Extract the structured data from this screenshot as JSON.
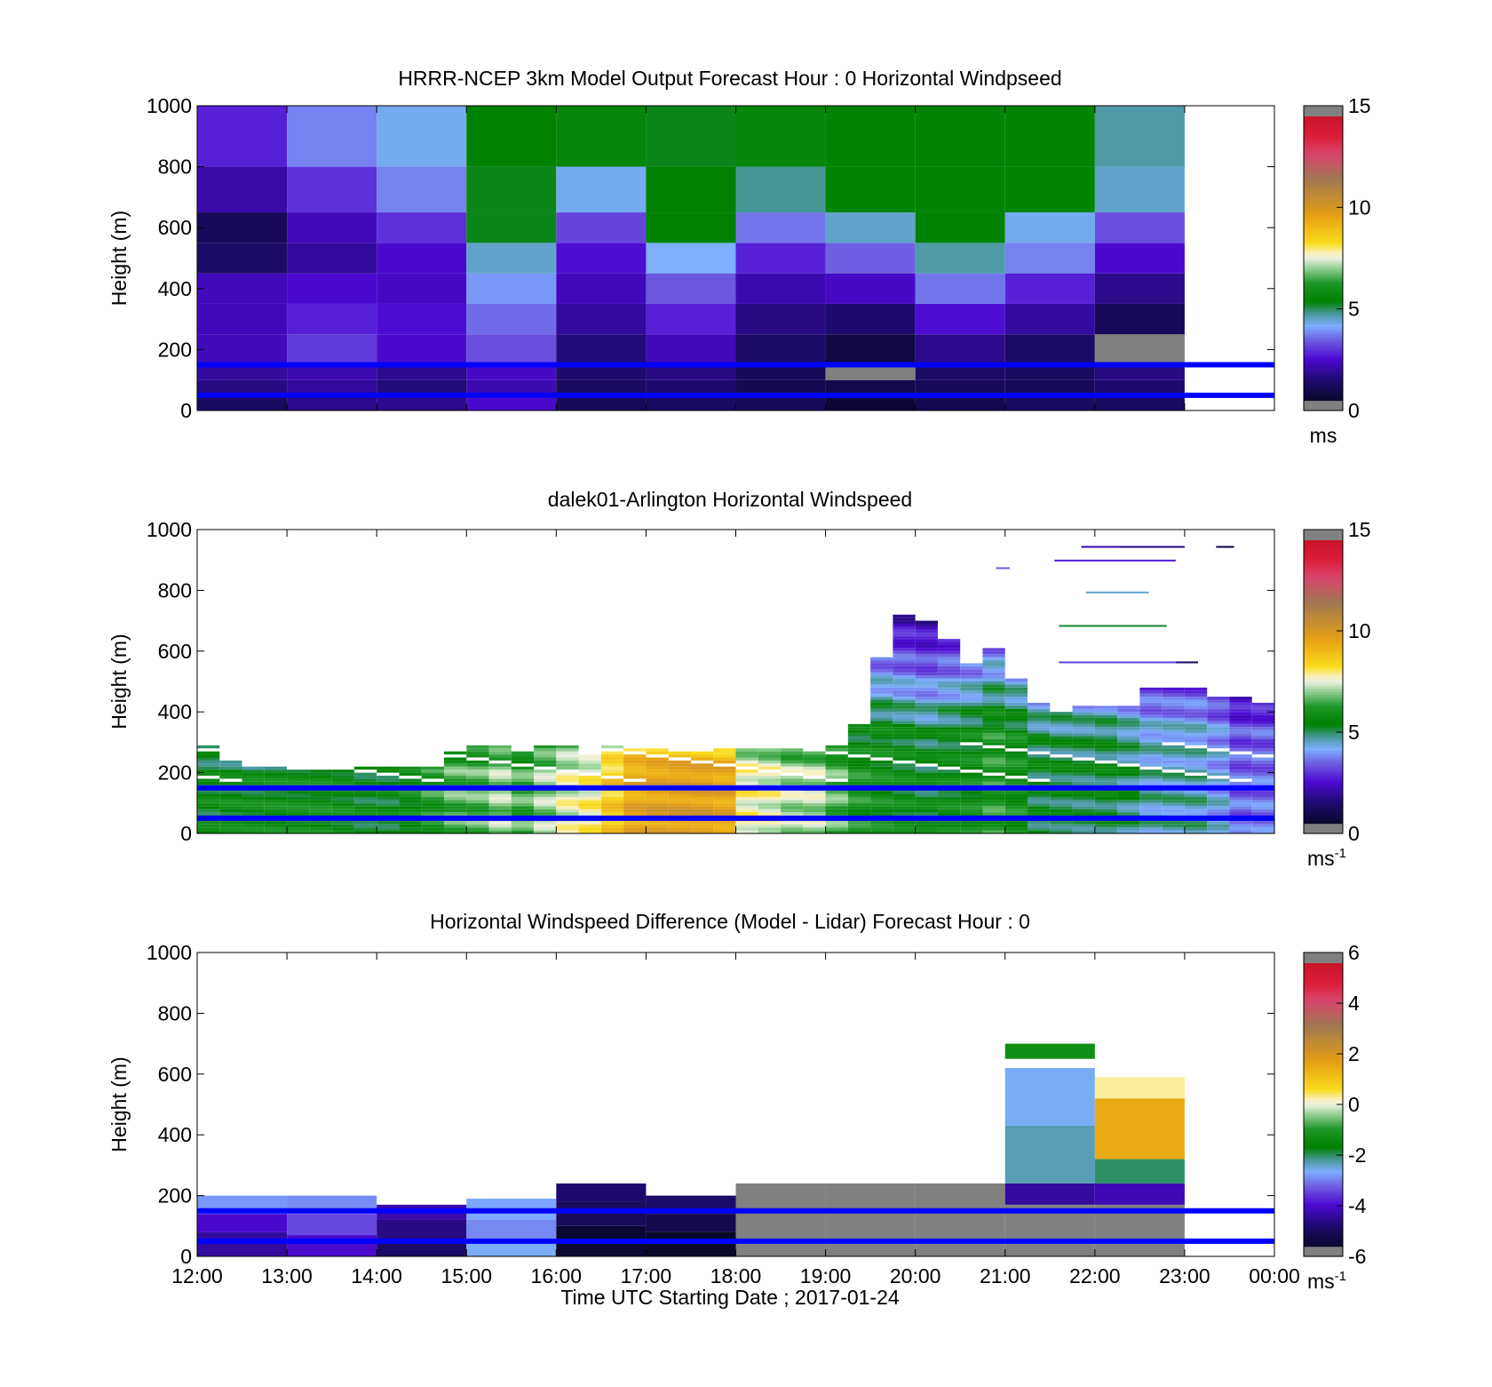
{
  "figure": {
    "xticks": [
      "12:00",
      "13:00",
      "14:00",
      "15:00",
      "16:00",
      "17:00",
      "18:00",
      "19:00",
      "20:00",
      "21:00",
      "22:00",
      "23:00",
      "00:00"
    ],
    "xlabel": "Time UTC  Starting Date ; 2017-01-24",
    "yticks": [
      "0",
      "200",
      "400",
      "600",
      "800",
      "1000"
    ],
    "ylabel": "Height (m)"
  },
  "chart_data": [
    {
      "type": "heatmap",
      "title": "HRRR-NCEP 3km Model Output   Forecast Hour : 0 Horizontal Windpseed",
      "xlabel": "",
      "ylabel": "Height (m)",
      "ylim": [
        0,
        1000
      ],
      "xlim": [
        "12:00",
        "00:00"
      ],
      "colorbar": {
        "ticks": [
          "0",
          "5",
          "10",
          "15"
        ],
        "range": [
          0,
          15
        ],
        "unit": "ms",
        "unit_sup": ""
      },
      "reference_lines_m": [
        150,
        50
      ],
      "cell_width_hours": 1,
      "columns": [
        {
          "start": 0,
          "values": [
            [
              0,
              50,
              1.3
            ],
            [
              50,
              100,
              1.7
            ],
            [
              100,
              150,
              2.0
            ],
            [
              150,
              250,
              2.3
            ],
            [
              250,
              350,
              2.3
            ],
            [
              350,
              450,
              2.3
            ],
            [
              450,
              550,
              1.4
            ],
            [
              550,
              650,
              1.2
            ],
            [
              650,
              800,
              2.1
            ],
            [
              800,
              1000,
              2.8
            ]
          ]
        },
        {
          "start": 1,
          "values": [
            [
              0,
              50,
              1.8
            ],
            [
              50,
              100,
              2.0
            ],
            [
              100,
              150,
              2.2
            ],
            [
              150,
              250,
              3.1
            ],
            [
              250,
              350,
              2.8
            ],
            [
              350,
              450,
              2.5
            ],
            [
              450,
              550,
              2.0
            ],
            [
              550,
              650,
              2.3
            ],
            [
              650,
              800,
              3.0
            ],
            [
              800,
              1000,
              3.8
            ]
          ]
        },
        {
          "start": 2,
          "values": [
            [
              0,
              50,
              1.8
            ],
            [
              50,
              100,
              1.6
            ],
            [
              100,
              150,
              1.8
            ],
            [
              150,
              250,
              2.5
            ],
            [
              250,
              350,
              2.6
            ],
            [
              350,
              450,
              2.4
            ],
            [
              450,
              550,
              2.5
            ],
            [
              550,
              650,
              3.0
            ],
            [
              650,
              800,
              3.8
            ],
            [
              800,
              1000,
              4.3
            ]
          ]
        },
        {
          "start": 3,
          "values": [
            [
              0,
              50,
              2.5
            ],
            [
              50,
              100,
              2.2
            ],
            [
              100,
              150,
              2.4
            ],
            [
              150,
              250,
              3.3
            ],
            [
              250,
              350,
              3.6
            ],
            [
              350,
              450,
              4.0
            ],
            [
              450,
              550,
              4.5
            ],
            [
              550,
              650,
              5.3
            ],
            [
              650,
              800,
              5.3
            ],
            [
              800,
              1000,
              5.4
            ]
          ]
        },
        {
          "start": 4,
          "values": [
            [
              0,
              50,
              1.2
            ],
            [
              50,
              100,
              1.3
            ],
            [
              100,
              150,
              1.5
            ],
            [
              150,
              250,
              1.6
            ],
            [
              250,
              350,
              2.0
            ],
            [
              350,
              450,
              2.3
            ],
            [
              450,
              550,
              2.6
            ],
            [
              550,
              650,
              3.2
            ],
            [
              650,
              800,
              4.3
            ],
            [
              800,
              1000,
              5.6
            ]
          ]
        },
        {
          "start": 5,
          "values": [
            [
              0,
              50,
              1.3
            ],
            [
              50,
              100,
              1.5
            ],
            [
              100,
              150,
              1.7
            ],
            [
              150,
              250,
              2.3
            ],
            [
              250,
              350,
              2.8
            ],
            [
              350,
              450,
              3.4
            ],
            [
              450,
              550,
              4.2
            ],
            [
              550,
              650,
              5.4
            ],
            [
              650,
              800,
              5.4
            ],
            [
              800,
              1000,
              5.3
            ]
          ]
        },
        {
          "start": 6,
          "values": [
            [
              0,
              50,
              1.2
            ],
            [
              50,
              100,
              1.1
            ],
            [
              100,
              150,
              1.2
            ],
            [
              150,
              250,
              1.4
            ],
            [
              250,
              350,
              1.7
            ],
            [
              350,
              450,
              2.2
            ],
            [
              450,
              550,
              2.8
            ],
            [
              550,
              650,
              3.7
            ],
            [
              650,
              800,
              4.8
            ],
            [
              800,
              1000,
              5.6
            ]
          ]
        },
        {
          "start": 7,
          "values": [
            [
              0,
              50,
              0.7
            ],
            [
              50,
              100,
              1.0
            ],
            [
              100,
              150,
              0.0
            ],
            [
              150,
              250,
              0.9
            ],
            [
              250,
              350,
              1.5
            ],
            [
              350,
              450,
              2.4
            ],
            [
              450,
              550,
              3.5
            ],
            [
              550,
              650,
              4.5
            ],
            [
              650,
              800,
              5.5
            ],
            [
              800,
              1000,
              5.5
            ]
          ]
        },
        {
          "start": 8,
          "values": [
            [
              0,
              50,
              1.1
            ],
            [
              50,
              100,
              1.2
            ],
            [
              100,
              150,
              1.4
            ],
            [
              150,
              250,
              1.8
            ],
            [
              250,
              350,
              2.6
            ],
            [
              350,
              450,
              3.7
            ],
            [
              450,
              550,
              4.7
            ],
            [
              550,
              650,
              5.4
            ],
            [
              650,
              800,
              5.5
            ],
            [
              800,
              1000,
              5.5
            ]
          ]
        },
        {
          "start": 9,
          "values": [
            [
              0,
              50,
              1.3
            ],
            [
              50,
              100,
              1.2
            ],
            [
              100,
              150,
              1.3
            ],
            [
              150,
              250,
              1.4
            ],
            [
              250,
              350,
              2.0
            ],
            [
              350,
              450,
              2.8
            ],
            [
              450,
              550,
              3.8
            ],
            [
              550,
              650,
              4.3
            ],
            [
              650,
              800,
              5.5
            ],
            [
              800,
              1000,
              5.5
            ]
          ]
        },
        {
          "start": 10,
          "values": [
            [
              0,
              50,
              1.3
            ],
            [
              50,
              100,
              1.5
            ],
            [
              100,
              150,
              1.7
            ],
            [
              150,
              250,
              0.0
            ],
            [
              250,
              350,
              1.2
            ],
            [
              350,
              450,
              1.8
            ],
            [
              450,
              550,
              2.5
            ],
            [
              550,
              650,
              3.3
            ],
            [
              650,
              800,
              4.5
            ],
            [
              800,
              1000,
              4.7
            ]
          ]
        }
      ]
    },
    {
      "type": "heatmap",
      "title": "dalek01-Arlington  Horizontal Windspeed",
      "xlabel": "",
      "ylabel": "Height (m)",
      "ylim": [
        0,
        1000
      ],
      "xlim": [
        "12:00",
        "00:00"
      ],
      "colorbar": {
        "ticks": [
          "0",
          "5",
          "10",
          "15"
        ],
        "range": [
          0,
          15
        ],
        "unit": "ms",
        "unit_sup": "-1"
      },
      "reference_lines_m": [
        150,
        50
      ],
      "cell_width_hours": 0.25,
      "profile_speeds": [
        5.5,
        5.6,
        5.6,
        5.7,
        5.7,
        5.8,
        5.7,
        5.5,
        5.5,
        5.8,
        6.2,
        6.6,
        6.6,
        7.0,
        6.5,
        7.0,
        7.5,
        7.8,
        8.6,
        9.5,
        9.7,
        9.8,
        9.8,
        9.6,
        7.8,
        7.6,
        7.2,
        7.2,
        6.6,
        6.0,
        5.8,
        5.6,
        5.4,
        5.6,
        5.8,
        6.2,
        5.9,
        5.3,
        5.3,
        5.2,
        5.3,
        5.0,
        4.6,
        4.6,
        4.6,
        4.2,
        3.5,
        3.6
      ],
      "profile_tops_m": [
        290,
        240,
        220,
        220,
        210,
        210,
        220,
        220,
        220,
        220,
        220,
        270,
        290,
        290,
        270,
        290,
        290,
        260,
        290,
        280,
        280,
        270,
        270,
        280,
        280,
        280,
        280,
        280,
        290,
        360,
        580,
        720,
        700,
        640,
        560,
        610,
        510,
        430,
        400,
        420,
        420,
        420,
        480,
        480,
        480,
        450,
        450,
        430
      ],
      "sparse_segments": [
        {
          "start_h": 9.85,
          "end_h": 10.25,
          "height_m": 940,
          "speed": 2.2
        },
        {
          "start_h": 10.25,
          "end_h": 11.0,
          "height_m": 940,
          "speed": 1.8
        },
        {
          "start_h": 11.35,
          "end_h": 11.55,
          "height_m": 940,
          "speed": 0.8
        },
        {
          "start_h": 9.55,
          "end_h": 10.9,
          "height_m": 895,
          "speed": 2.8
        },
        {
          "start_h": 8.9,
          "end_h": 9.05,
          "height_m": 870,
          "speed": 3.5
        },
        {
          "start_h": 9.9,
          "end_h": 10.6,
          "height_m": 790,
          "speed": 4.5
        },
        {
          "start_h": 9.6,
          "end_h": 10.8,
          "height_m": 680,
          "speed": 5.2
        },
        {
          "start_h": 9.6,
          "end_h": 10.9,
          "height_m": 560,
          "speed": 3.2
        },
        {
          "start_h": 10.9,
          "end_h": 11.15,
          "height_m": 560,
          "speed": 1.4
        }
      ]
    },
    {
      "type": "heatmap",
      "title": "Horizontal Windspeed Difference (Model - Lidar) Forecast Hour : 0",
      "xlabel": "Time UTC  Starting Date ; 2017-01-24",
      "ylabel": "Height (m)",
      "ylim": [
        0,
        1000
      ],
      "xlim": [
        "12:00",
        "00:00"
      ],
      "colorbar": {
        "ticks": [
          "-6",
          "-4",
          "-2",
          "0",
          "2",
          "4",
          "6"
        ],
        "range": [
          -6,
          6
        ],
        "unit": "ms",
        "unit_sup": "-1"
      },
      "reference_lines_m": [
        150,
        50
      ],
      "cell_width_hours": 1,
      "columns": [
        {
          "start": 0,
          "top": 200,
          "values": [
            [
              0,
              80,
              -4.4
            ],
            [
              80,
              140,
              -4.0
            ],
            [
              140,
              200,
              -2.8
            ]
          ]
        },
        {
          "start": 1,
          "top": 200,
          "values": [
            [
              0,
              70,
              -4.0
            ],
            [
              70,
              140,
              -3.4
            ],
            [
              140,
              200,
              -2.9
            ]
          ]
        },
        {
          "start": 2,
          "top": 170,
          "values": [
            [
              0,
              60,
              -4.9
            ],
            [
              60,
              120,
              -4.6
            ],
            [
              120,
              170,
              -4.3
            ]
          ]
        },
        {
          "start": 3,
          "top": 190,
          "values": [
            [
              0,
              60,
              -2.6
            ],
            [
              60,
              120,
              -2.9
            ],
            [
              120,
              190,
              -2.7
            ]
          ]
        },
        {
          "start": 4,
          "top": 240,
          "values": [
            [
              0,
              100,
              -5.5
            ],
            [
              100,
              180,
              -5.0
            ],
            [
              180,
              240,
              -4.8
            ]
          ]
        },
        {
          "start": 5,
          "top": 200,
          "values": [
            [
              0,
              80,
              -5.6
            ],
            [
              80,
              140,
              -5.2
            ],
            [
              140,
              200,
              -4.9
            ]
          ]
        },
        {
          "start": 6,
          "top": 240,
          "values": [
            [
              0,
              240,
              -7.0
            ]
          ]
        },
        {
          "start": 7,
          "top": 240,
          "values": [
            [
              0,
              240,
              -7.0
            ]
          ]
        },
        {
          "start": 8,
          "top": 240,
          "values": [
            [
              0,
              240,
              -7.0
            ]
          ]
        },
        {
          "start": 9,
          "top": 700,
          "values": [
            [
              0,
              170,
              -7.0
            ],
            [
              170,
              240,
              -4.4
            ],
            [
              240,
              430,
              -2.3
            ],
            [
              430,
              620,
              -2.6
            ],
            [
              650,
              700,
              -1.3
            ]
          ]
        },
        {
          "start": 10,
          "top": 590,
          "values": [
            [
              0,
              170,
              -5.8
            ],
            [
              170,
              240,
              -4.2
            ],
            [
              240,
              320,
              -2.0
            ],
            [
              320,
              520,
              1.5
            ],
            [
              520,
              590,
              0.3
            ]
          ]
        }
      ]
    }
  ]
}
